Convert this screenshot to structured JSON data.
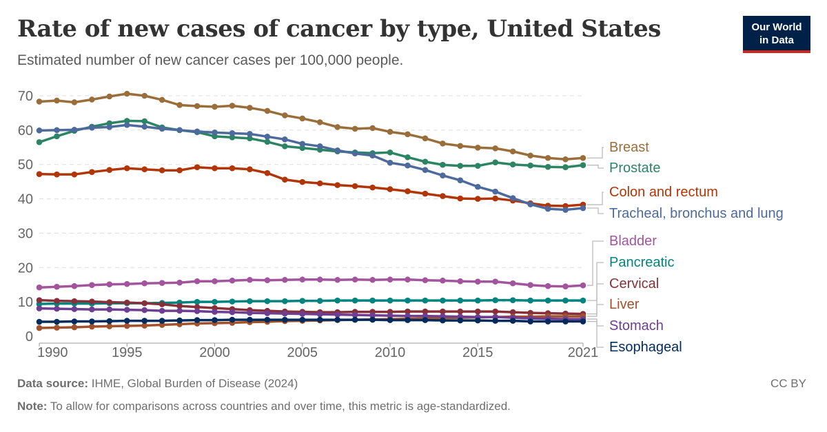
{
  "header": {
    "title": "Rate of new cases of cancer by type, United States",
    "subtitle": "Estimated number of new cancer cases per 100,000 people.",
    "logo": "Our World in Data"
  },
  "footer": {
    "source_label": "Data source:",
    "source": "IHME, Global Burden of Disease (2024)",
    "note_label": "Note:",
    "note": "To allow for comparisons across countries and over time, this metric is age-standardized.",
    "license": "CC BY"
  },
  "chart_data": {
    "type": "line",
    "title": "Rate of new cases of cancer by type, United States",
    "ylim": [
      0,
      70
    ],
    "y_ticks": [
      0,
      10,
      20,
      30,
      40,
      50,
      60,
      70
    ],
    "x_ticks": [
      1990,
      1995,
      2000,
      2005,
      2010,
      2015,
      2021
    ],
    "grid": "horizontal dashed",
    "legend": "right, labels at line ends",
    "x": [
      1990,
      1991,
      1992,
      1993,
      1994,
      1995,
      1996,
      1997,
      1998,
      1999,
      2000,
      2001,
      2002,
      2003,
      2004,
      2005,
      2006,
      2007,
      2008,
      2009,
      2010,
      2011,
      2012,
      2013,
      2014,
      2015,
      2016,
      2017,
      2018,
      2019,
      2020,
      2021
    ],
    "series": [
      {
        "name": "Breast",
        "color": "#9a6e3a",
        "values": [
          68.3,
          68.6,
          68.1,
          68.9,
          69.8,
          70.6,
          70.0,
          68.8,
          67.3,
          67.0,
          66.8,
          67.1,
          66.5,
          65.6,
          64.3,
          63.4,
          62.3,
          60.9,
          60.4,
          60.6,
          59.5,
          58.8,
          57.6,
          56.1,
          55.4,
          54.9,
          54.7,
          53.8,
          52.6,
          51.9,
          51.5,
          51.9
        ]
      },
      {
        "name": "Prostate",
        "color": "#2c8465",
        "values": [
          56.5,
          58.2,
          59.8,
          61.0,
          62.0,
          62.7,
          62.6,
          60.8,
          60.0,
          59.4,
          58.2,
          57.9,
          57.6,
          56.6,
          55.3,
          54.8,
          54.3,
          53.8,
          53.5,
          53.3,
          53.5,
          52.1,
          50.8,
          49.9,
          49.6,
          49.6,
          50.6,
          50.0,
          49.7,
          49.3,
          49.2,
          49.8
        ]
      },
      {
        "name": "Colon and rectum",
        "color": "#b13507",
        "values": [
          47.2,
          47.1,
          47.1,
          47.8,
          48.4,
          48.9,
          48.6,
          48.3,
          48.3,
          49.2,
          48.9,
          48.9,
          48.6,
          47.5,
          45.6,
          44.9,
          44.5,
          44.0,
          43.7,
          43.3,
          42.8,
          42.2,
          41.5,
          40.8,
          40.1,
          40.0,
          40.1,
          39.5,
          38.7,
          38.0,
          37.9,
          38.3
        ]
      },
      {
        "name": "Tracheal, bronchus and lung",
        "color": "#4c6a9c",
        "values": [
          59.9,
          60.0,
          60.1,
          60.7,
          60.9,
          61.5,
          61.0,
          60.4,
          60.0,
          59.6,
          59.3,
          59.1,
          58.9,
          58.1,
          57.3,
          56.0,
          55.3,
          54.1,
          53.2,
          52.6,
          50.5,
          49.7,
          48.4,
          46.8,
          45.4,
          43.5,
          42.1,
          40.2,
          38.4,
          37.1,
          36.8,
          37.3
        ]
      },
      {
        "name": "Bladder",
        "color": "#a2559c",
        "values": [
          14.2,
          14.4,
          14.6,
          14.9,
          15.1,
          15.2,
          15.4,
          15.5,
          15.6,
          16.0,
          16.0,
          16.2,
          16.4,
          16.3,
          16.4,
          16.5,
          16.5,
          16.4,
          16.5,
          16.4,
          16.5,
          16.5,
          16.3,
          16.2,
          16.0,
          15.9,
          15.9,
          15.4,
          14.9,
          14.6,
          14.5,
          14.8
        ]
      },
      {
        "name": "Pancreatic",
        "color": "#00847e",
        "values": [
          9.4,
          9.5,
          9.5,
          9.5,
          9.6,
          9.6,
          9.6,
          9.7,
          9.8,
          10.0,
          10.0,
          10.1,
          10.2,
          10.2,
          10.2,
          10.3,
          10.3,
          10.4,
          10.4,
          10.4,
          10.4,
          10.4,
          10.4,
          10.4,
          10.4,
          10.4,
          10.5,
          10.5,
          10.4,
          10.4,
          10.4,
          10.4
        ]
      },
      {
        "name": "Cervical",
        "color": "#883039",
        "values": [
          10.5,
          10.3,
          10.2,
          10.1,
          9.9,
          9.8,
          9.6,
          9.3,
          8.8,
          8.5,
          8.2,
          7.9,
          7.6,
          7.4,
          7.2,
          7.1,
          7.0,
          7.0,
          7.1,
          7.1,
          7.1,
          7.2,
          7.2,
          7.2,
          7.2,
          7.2,
          7.2,
          7.0,
          6.8,
          6.7,
          6.6,
          6.5
        ]
      },
      {
        "name": "Liver",
        "color": "#a2522b",
        "values": [
          2.4,
          2.5,
          2.6,
          2.8,
          2.9,
          3.0,
          3.1,
          3.3,
          3.5,
          3.7,
          3.8,
          3.9,
          4.1,
          4.2,
          4.4,
          4.5,
          4.6,
          4.7,
          4.8,
          4.9,
          5.0,
          5.1,
          5.2,
          5.3,
          5.4,
          5.5,
          5.6,
          5.7,
          5.7,
          5.8,
          5.8,
          5.8
        ]
      },
      {
        "name": "Stomach",
        "color": "#6d3e91",
        "values": [
          8.1,
          8.0,
          7.9,
          7.8,
          7.8,
          7.7,
          7.6,
          7.4,
          7.4,
          7.3,
          7.1,
          7.0,
          6.8,
          6.7,
          6.6,
          6.5,
          6.4,
          6.3,
          6.2,
          6.1,
          6.0,
          5.9,
          5.9,
          5.8,
          5.7,
          5.6,
          5.6,
          5.4,
          5.2,
          5.1,
          5.0,
          5.0
        ]
      },
      {
        "name": "Esophageal",
        "color": "#002b5c",
        "values": [
          4.2,
          4.2,
          4.3,
          4.3,
          4.4,
          4.5,
          4.5,
          4.5,
          4.6,
          4.7,
          4.7,
          4.8,
          4.8,
          4.8,
          4.8,
          4.8,
          4.8,
          4.8,
          4.8,
          4.8,
          4.7,
          4.7,
          4.7,
          4.6,
          4.6,
          4.6,
          4.5,
          4.5,
          4.3,
          4.3,
          4.3,
          4.3
        ]
      }
    ]
  }
}
